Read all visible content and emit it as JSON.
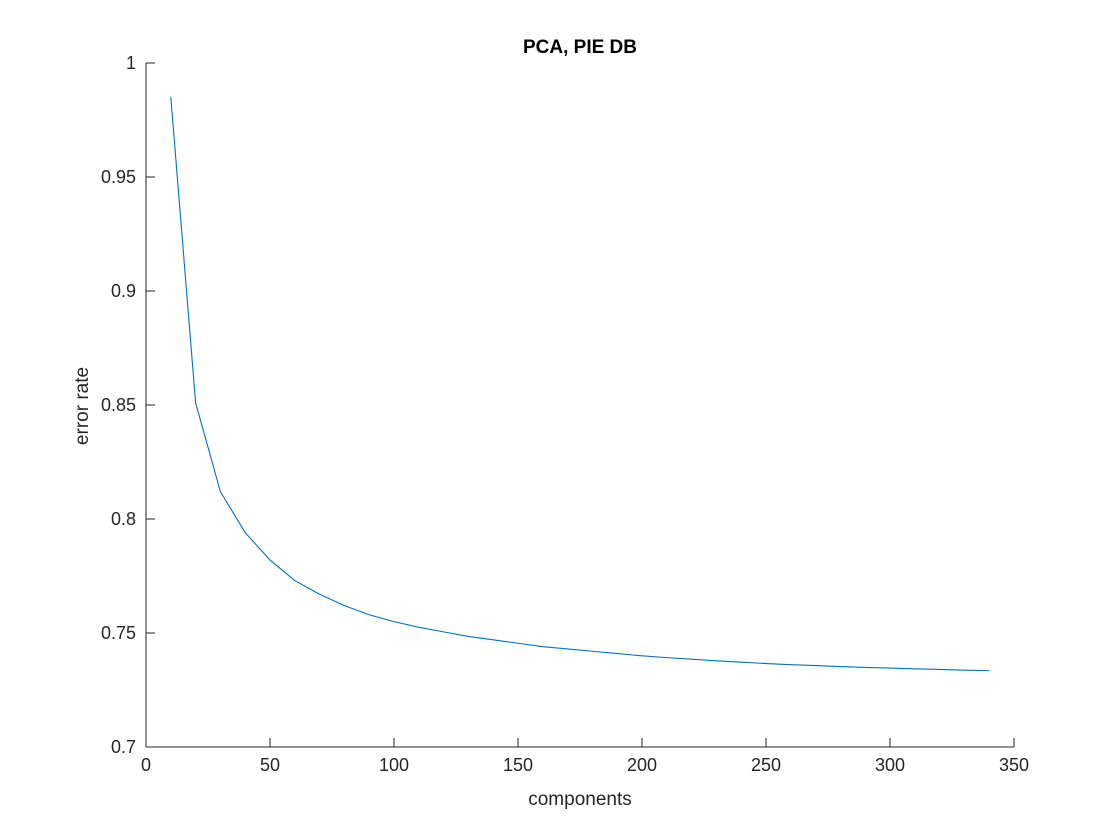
{
  "chart_data": {
    "type": "line",
    "title": "PCA, PIE DB",
    "xlabel": "components",
    "ylabel": "error rate",
    "xlim": [
      0,
      350
    ],
    "ylim": [
      0.7,
      1.0
    ],
    "xticks": [
      0,
      50,
      100,
      150,
      200,
      250,
      300,
      350
    ],
    "xtick_labels": [
      "0",
      "50",
      "100",
      "150",
      "200",
      "250",
      "300",
      "350"
    ],
    "yticks": [
      0.7,
      0.75,
      0.8,
      0.85,
      0.9,
      0.95,
      1.0
    ],
    "ytick_labels": [
      "0.7",
      "0.75",
      "0.8",
      "0.85",
      "0.9",
      "0.95",
      "1"
    ],
    "grid": false,
    "legend": "none",
    "series": [
      {
        "color": "#0072bd",
        "x": [
          10,
          20,
          30,
          40,
          50,
          60,
          70,
          80,
          90,
          100,
          110,
          120,
          130,
          140,
          150,
          160,
          170,
          180,
          190,
          200,
          210,
          220,
          230,
          240,
          250,
          260,
          270,
          280,
          290,
          300,
          310,
          320,
          330,
          340
        ],
        "y": [
          0.985,
          0.851,
          0.812,
          0.794,
          0.782,
          0.773,
          0.767,
          0.762,
          0.758,
          0.755,
          0.7525,
          0.7505,
          0.7485,
          0.747,
          0.7455,
          0.744,
          0.743,
          0.742,
          0.741,
          0.74,
          0.7392,
          0.7385,
          0.7378,
          0.7372,
          0.7366,
          0.7361,
          0.7357,
          0.7353,
          0.7349,
          0.7346,
          0.7343,
          0.734,
          0.7337,
          0.7335
        ]
      }
    ]
  }
}
